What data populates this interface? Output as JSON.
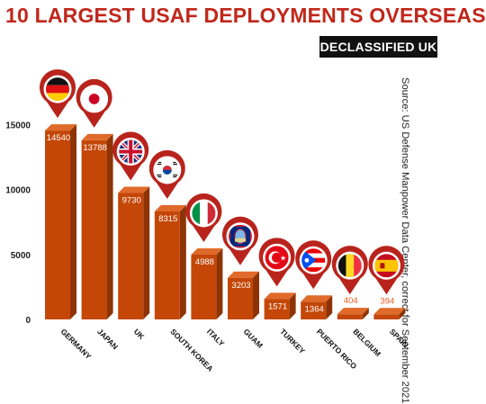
{
  "header": {
    "title": "10 LARGEST USAF DEPLOYMENTS OVERSEAS",
    "brand": "DECLASSIFIED UK"
  },
  "source": "Source: US Defense Manpower Data Center, correct for September 2021",
  "colors": {
    "title": "#c0271b",
    "bar_front": "#c44708",
    "bar_top": "#e06a2a",
    "bar_side": "#8e3305",
    "pin": "#b8241c",
    "label": "#f0591e"
  },
  "chart_data": {
    "type": "bar",
    "title": "10 LARGEST USAF DEPLOYMENTS OVERSEAS",
    "categories": [
      "GERMANY",
      "JAPAN",
      "UK",
      "SOUTH KOREA",
      "ITALY",
      "GUAM",
      "TURKEY",
      "PUERTO RICO",
      "BELGIUM",
      "SPAIN"
    ],
    "values": [
      14540,
      13788,
      9730,
      8315,
      4988,
      3203,
      1571,
      1364,
      404,
      394
    ],
    "flag_icons": [
      "germany-flag-icon",
      "japan-flag-icon",
      "uk-flag-icon",
      "south-korea-flag-icon",
      "italy-flag-icon",
      "guam-flag-icon",
      "turkey-flag-icon",
      "puerto-rico-flag-icon",
      "belgium-flag-icon",
      "spain-flag-icon"
    ],
    "yticks": [
      0,
      5000,
      10000,
      15000
    ],
    "ylim": [
      0,
      16000
    ],
    "xlabel": "",
    "ylabel": "",
    "grid": false,
    "legend": "none"
  }
}
